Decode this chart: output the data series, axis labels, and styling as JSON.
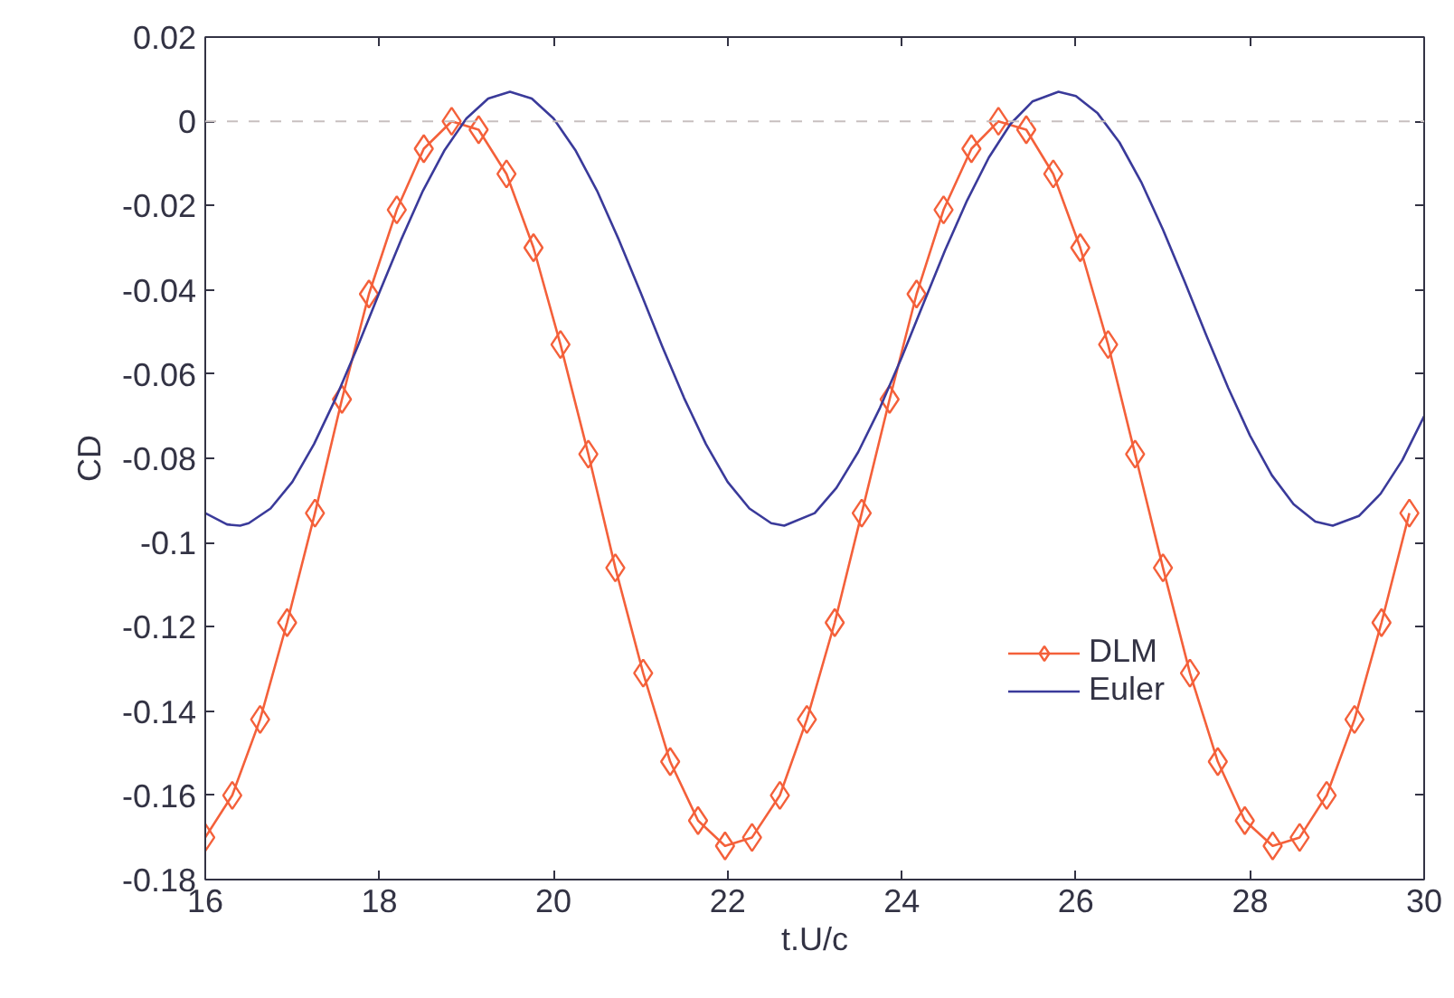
{
  "chart_data": {
    "type": "line",
    "xlabel": "t.U/c",
    "ylabel": "CD",
    "xlim": [
      16,
      30
    ],
    "ylim": [
      -0.18,
      0.02
    ],
    "xticks": [
      16,
      18,
      20,
      22,
      24,
      26,
      28,
      30
    ],
    "yticks": [
      {
        "value": 0.02,
        "label": "0.02"
      },
      {
        "value": 0,
        "label": "0"
      },
      {
        "value": -0.02,
        "label": "-0.02"
      },
      {
        "value": -0.04,
        "label": "-0.04"
      },
      {
        "value": -0.06,
        "label": "-0.06"
      },
      {
        "value": -0.08,
        "label": "-0.08"
      },
      {
        "value": -0.1,
        "label": "-0.1"
      },
      {
        "value": -0.12,
        "label": "-0.12"
      },
      {
        "value": -0.14,
        "label": "-0.14"
      },
      {
        "value": -0.16,
        "label": "-0.16"
      },
      {
        "value": -0.18,
        "label": "-0.18"
      }
    ],
    "grid": false,
    "legend": "bottom",
    "ref_lines": [
      {
        "axis": "y",
        "value": 0,
        "color": "#c8c0c0",
        "line_style": "dashed"
      }
    ],
    "series": [
      {
        "name": "DLM",
        "color": "#f4603a",
        "marker": "diamond",
        "line_style": "solid",
        "x": [
          16.0,
          16.31,
          16.63,
          16.94,
          17.26,
          17.57,
          17.88,
          18.2,
          18.51,
          18.83,
          19.14,
          19.46,
          19.77,
          20.08,
          20.4,
          20.71,
          21.03,
          21.34,
          21.66,
          21.97,
          22.28,
          22.6,
          22.91,
          23.23,
          23.54,
          23.86,
          24.17,
          24.48,
          24.8,
          25.11,
          25.43,
          25.74,
          26.05,
          26.37,
          26.68,
          27.0,
          27.31,
          27.63,
          27.94,
          28.26,
          28.57,
          28.88,
          29.2,
          29.51,
          29.83
        ],
        "values": [
          -0.17,
          -0.16,
          -0.142,
          -0.119,
          -0.093,
          -0.066,
          -0.041,
          -0.021,
          -0.0065,
          0.0,
          -0.002,
          -0.0125,
          -0.03,
          -0.053,
          -0.079,
          -0.106,
          -0.131,
          -0.152,
          -0.166,
          -0.172,
          -0.17,
          -0.16,
          -0.142,
          -0.119,
          -0.093,
          -0.066,
          -0.041,
          -0.021,
          -0.0065,
          0.0,
          -0.002,
          -0.0125,
          -0.03,
          -0.053,
          -0.079,
          -0.106,
          -0.131,
          -0.152,
          -0.166,
          -0.172,
          -0.17,
          -0.16,
          -0.142,
          -0.119,
          -0.093
        ]
      },
      {
        "name": "Euler",
        "color": "#3a3a9a",
        "marker": "none",
        "line_style": "solid",
        "x": [
          16.0,
          16.25,
          16.4,
          16.5,
          16.75,
          17.0,
          17.25,
          17.5,
          17.75,
          18.0,
          18.25,
          18.5,
          18.75,
          19.0,
          19.25,
          19.5,
          19.75,
          20.0,
          20.25,
          20.5,
          20.75,
          21.0,
          21.25,
          21.5,
          21.75,
          22.0,
          22.25,
          22.5,
          22.65,
          23.0,
          23.25,
          23.5,
          23.75,
          24.0,
          24.25,
          24.5,
          24.75,
          25.0,
          25.25,
          25.5,
          25.8,
          26.0,
          26.25,
          26.5,
          26.75,
          27.0,
          27.25,
          27.5,
          27.75,
          28.0,
          28.25,
          28.5,
          28.75,
          28.95,
          29.25,
          29.5,
          29.75,
          30.0
        ],
        "values": [
          -0.093,
          -0.0957,
          -0.096,
          -0.0954,
          -0.0919,
          -0.0856,
          -0.0766,
          -0.0657,
          -0.0535,
          -0.0406,
          -0.0281,
          -0.0165,
          -0.0068,
          0.0007,
          0.0054,
          0.007,
          0.0054,
          0.0007,
          -0.0068,
          -0.0165,
          -0.0281,
          -0.0406,
          -0.0535,
          -0.0657,
          -0.0766,
          -0.0856,
          -0.0919,
          -0.0954,
          -0.096,
          -0.093,
          -0.087,
          -0.0785,
          -0.068,
          -0.056,
          -0.0432,
          -0.0305,
          -0.0188,
          -0.0086,
          -0.0006,
          0.0047,
          0.007,
          0.006,
          0.0019,
          -0.005,
          -0.0144,
          -0.0257,
          -0.0381,
          -0.0509,
          -0.0633,
          -0.0746,
          -0.084,
          -0.0909,
          -0.095,
          -0.096,
          -0.0937,
          -0.0884,
          -0.0804,
          -0.07
        ]
      }
    ]
  }
}
